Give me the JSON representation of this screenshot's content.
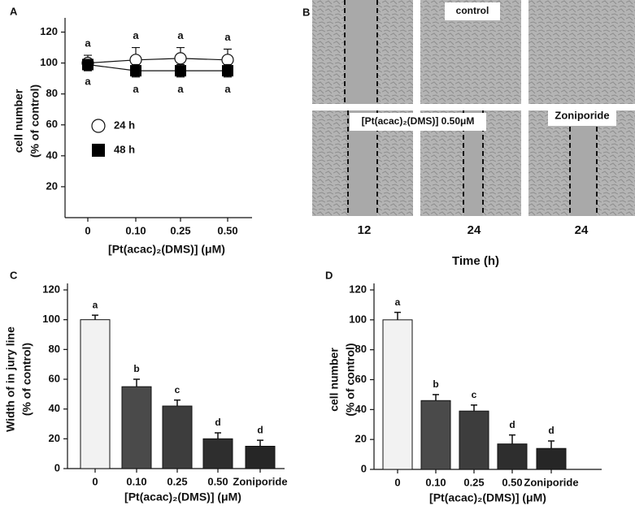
{
  "chart_data": [
    {
      "type": "line",
      "panel": "A",
      "ylabel": [
        "cell number",
        "(% of control)"
      ],
      "xlabel": "[Pt(acac)₂(DMS)] (μM)",
      "categories": [
        "0",
        "0.10",
        "0.25",
        "0.50"
      ],
      "ylim": [
        0,
        125
      ],
      "yticks": [
        20,
        40,
        60,
        80,
        100,
        120
      ],
      "series": [
        {
          "name": "24 h",
          "marker": "circle",
          "color": "#ffffff",
          "values": [
            100,
            102,
            103,
            102
          ],
          "errors": [
            5,
            8,
            7,
            7
          ],
          "labels": [
            "a",
            "a",
            "a",
            "a"
          ]
        },
        {
          "name": "48 h",
          "marker": "square",
          "color": "#000000",
          "values": [
            99,
            95,
            95,
            95
          ],
          "errors": [
            3,
            4,
            4,
            4
          ],
          "labels": [
            "a",
            "a",
            "a",
            "a"
          ]
        }
      ]
    },
    {
      "type": "bar",
      "panel": "C",
      "ylabel": [
        "Width of in jury line",
        "(% of control)"
      ],
      "xlabel": "[Pt(acac)₂(DMS)] (μM)",
      "categories": [
        "0",
        "0.10",
        "0.25",
        "0.50",
        "Zoniporide"
      ],
      "values": [
        100,
        55,
        42,
        20,
        15
      ],
      "errors": [
        3,
        5,
        4,
        4,
        4
      ],
      "labels": [
        "a",
        "b",
        "c",
        "d",
        "d"
      ],
      "colors": [
        "#f2f2f2",
        "#4a4a4a",
        "#3d3d3d",
        "#2e2e2e",
        "#262626"
      ],
      "ylim": [
        0,
        120
      ],
      "yticks": [
        0,
        20,
        40,
        60,
        80,
        100,
        120
      ]
    },
    {
      "type": "bar",
      "panel": "D",
      "ylabel": [
        "cell number",
        "(% of control)"
      ],
      "xlabel": "[Pt(acac)₂(DMS)] (μM)",
      "categories": [
        "0",
        "0.10",
        "0.25",
        "0.50",
        "Zoniporide"
      ],
      "values": [
        100,
        46,
        39,
        17,
        14
      ],
      "errors": [
        5,
        4,
        4,
        6,
        5
      ],
      "labels": [
        "a",
        "b",
        "c",
        "d",
        "d"
      ],
      "colors": [
        "#f2f2f2",
        "#4a4a4a",
        "#3d3d3d",
        "#2e2e2e",
        "#262626"
      ],
      "ylim": [
        0,
        120
      ],
      "yticks": [
        0,
        20,
        40,
        60,
        80,
        100,
        120
      ]
    }
  ],
  "panel_b": {
    "panel": "B",
    "image_labels": [
      "control",
      "[Pt(acac)₂(DMS)] 0.50μM",
      "Zoniporide"
    ],
    "columns": [
      "12",
      "24",
      "24"
    ],
    "xlabel": "Time (h)"
  }
}
